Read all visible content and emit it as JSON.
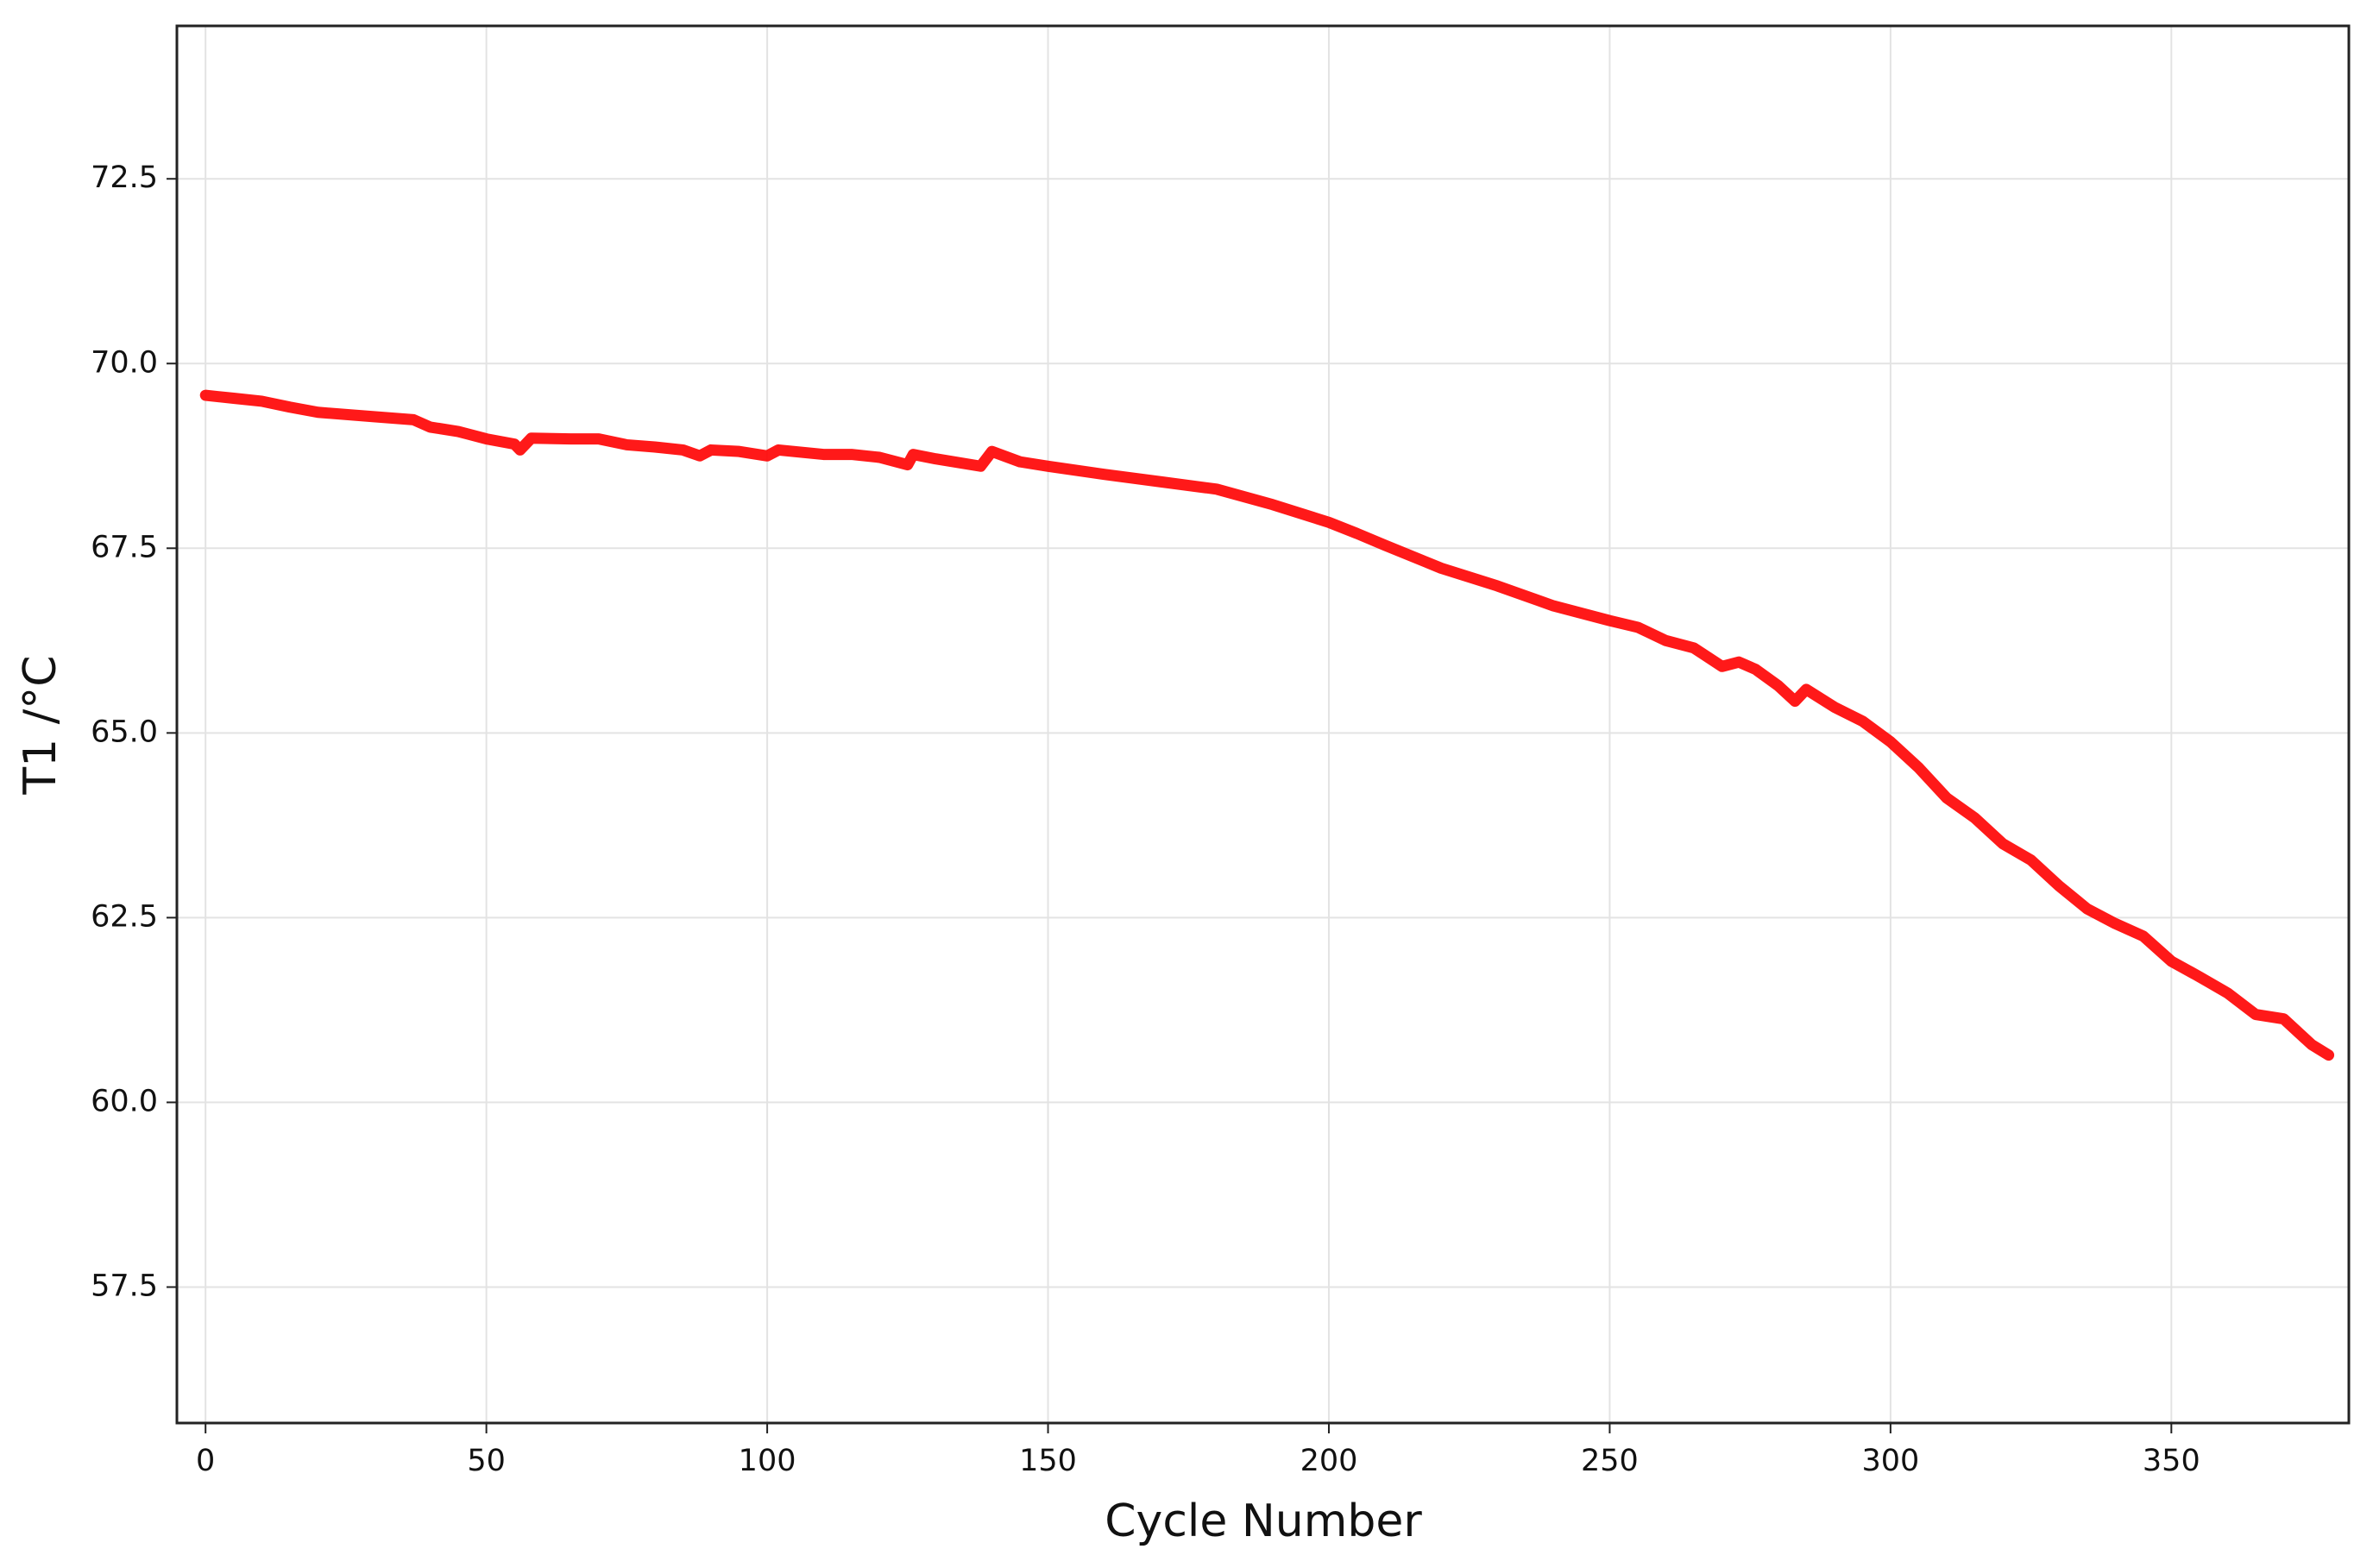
{
  "chart_data": {
    "type": "line",
    "x_label": "Cycle Number",
    "y_label": "T1 /°C",
    "x": [
      0,
      5,
      10,
      15,
      20,
      30,
      37,
      40,
      45,
      50,
      55,
      56,
      58,
      65,
      70,
      75,
      80,
      85,
      88,
      90,
      95,
      100,
      102,
      110,
      115,
      120,
      125,
      126,
      130,
      138,
      140,
      145,
      150,
      160,
      170,
      180,
      190,
      200,
      205,
      210,
      220,
      230,
      240,
      250,
      255,
      260,
      265,
      270,
      273,
      276,
      280,
      283,
      285,
      290,
      295,
      300,
      305,
      310,
      315,
      320,
      325,
      330,
      335,
      340,
      345,
      350,
      355,
      360,
      365,
      370,
      375,
      378
    ],
    "series": [
      {
        "color": "#ff0000",
        "values": [
          69.57,
          69.53,
          69.49,
          69.41,
          69.34,
          69.28,
          69.24,
          69.14,
          69.08,
          68.98,
          68.91,
          68.83,
          68.99,
          68.98,
          68.98,
          68.9,
          68.87,
          68.83,
          68.75,
          68.83,
          68.81,
          68.75,
          68.83,
          68.77,
          68.77,
          68.73,
          68.63,
          68.77,
          68.71,
          68.61,
          68.81,
          68.67,
          68.61,
          68.5,
          68.4,
          68.3,
          68.09,
          67.85,
          67.7,
          67.54,
          67.23,
          66.99,
          66.72,
          66.52,
          66.43,
          66.25,
          66.15,
          65.9,
          65.96,
          65.86,
          65.64,
          65.43,
          65.59,
          65.35,
          65.16,
          64.88,
          64.53,
          64.12,
          63.85,
          63.5,
          63.28,
          62.93,
          62.62,
          62.42,
          62.25,
          61.91,
          61.7,
          61.48,
          61.19,
          61.13,
          60.78,
          60.64
        ]
      }
    ],
    "xlim": [
      -5.1,
      381.6
    ],
    "ylim": [
      55.66,
      74.57
    ],
    "xticks": [
      0,
      50,
      100,
      150,
      200,
      250,
      300,
      350
    ],
    "yticks": [
      57.5,
      {
        "value": 60,
        "label": "60.0"
      },
      62.5,
      {
        "value": 65,
        "label": "65.0"
      },
      67.5,
      {
        "value": 70,
        "label": "70.0"
      },
      72.5
    ],
    "grid": true
  }
}
